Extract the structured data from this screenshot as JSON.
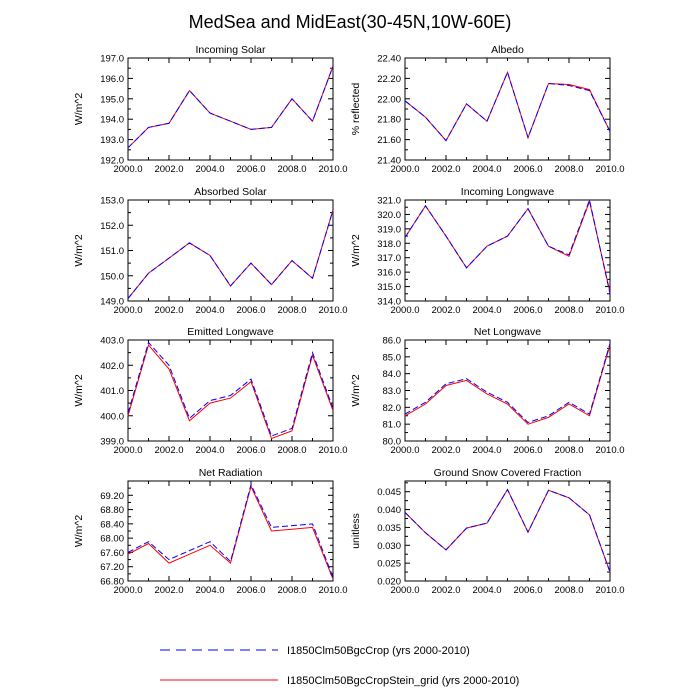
{
  "title": "MedSea and MidEast(30-45N,10W-60E)",
  "legend": [
    {
      "label": "I1850Clm50BgcCrop (yrs 2000-2010)",
      "color": "#0000ff",
      "dash": "dashed"
    },
    {
      "label": "I1850Clm50BgcCropStein_grid (yrs 2000-2010)",
      "color": "#ff0000",
      "dash": "solid"
    }
  ],
  "chart_data": [
    {
      "type": "line",
      "title": "Incoming Solar",
      "ylabel": "W/m^2",
      "xlim": [
        2000,
        2010
      ],
      "ylim": [
        192,
        197
      ],
      "xticks": [
        "2000.0",
        "2002.0",
        "2004.0",
        "2006.0",
        "2008.0",
        "2010.0"
      ],
      "yticks": [
        "192.0",
        "193.0",
        "194.0",
        "195.0",
        "196.0",
        "197.0"
      ],
      "x": [
        2000,
        2001,
        2002,
        2003,
        2004,
        2005,
        2006,
        2007,
        2008,
        2009,
        2010
      ],
      "series": [
        {
          "name": "I1850Clm50BgcCrop (yrs 2000-2010)",
          "values": [
            192.6,
            193.6,
            193.8,
            195.4,
            194.3,
            193.9,
            193.5,
            193.6,
            195.0,
            193.9,
            196.6
          ]
        },
        {
          "name": "I1850Clm50BgcCropStein_grid (yrs 2000-2010)",
          "values": [
            192.6,
            193.6,
            193.8,
            195.4,
            194.3,
            193.9,
            193.5,
            193.6,
            195.0,
            193.9,
            196.6
          ]
        }
      ]
    },
    {
      "type": "line",
      "title": "Albedo",
      "ylabel": "% reflected",
      "xlim": [
        2000,
        2010
      ],
      "ylim": [
        21.4,
        22.4
      ],
      "xticks": [
        "2000.0",
        "2002.0",
        "2004.0",
        "2006.0",
        "2008.0",
        "2010.0"
      ],
      "yticks": [
        "21.40",
        "21.60",
        "21.80",
        "22.00",
        "22.20",
        "22.40"
      ],
      "x": [
        2000,
        2001,
        2002,
        2003,
        2004,
        2005,
        2006,
        2007,
        2008,
        2009,
        2010
      ],
      "series": [
        {
          "name": "I1850Clm50BgcCrop (yrs 2000-2010)",
          "values": [
            21.98,
            21.82,
            21.59,
            21.95,
            21.78,
            22.26,
            21.62,
            22.15,
            22.13,
            22.08,
            21.68
          ]
        },
        {
          "name": "I1850Clm50BgcCropStein_grid (yrs 2000-2010)",
          "values": [
            21.98,
            21.82,
            21.59,
            21.95,
            21.78,
            22.26,
            21.62,
            22.15,
            22.14,
            22.09,
            21.68
          ]
        }
      ]
    },
    {
      "type": "line",
      "title": "Absorbed Solar",
      "ylabel": "W/m^2",
      "xlim": [
        2000,
        2010
      ],
      "ylim": [
        149,
        153
      ],
      "xticks": [
        "2000.0",
        "2002.0",
        "2004.0",
        "2006.0",
        "2008.0",
        "2010.0"
      ],
      "yticks": [
        "149.0",
        "150.0",
        "151.0",
        "152.0",
        "153.0"
      ],
      "x": [
        2000,
        2001,
        2002,
        2003,
        2004,
        2005,
        2006,
        2007,
        2008,
        2009,
        2010
      ],
      "series": [
        {
          "name": "I1850Clm50BgcCrop (yrs 2000-2010)",
          "values": [
            149.1,
            150.1,
            150.7,
            151.3,
            150.8,
            149.6,
            150.5,
            149.65,
            150.6,
            149.9,
            152.6
          ]
        },
        {
          "name": "I1850Clm50BgcCropStein_grid (yrs 2000-2010)",
          "values": [
            149.1,
            150.1,
            150.7,
            151.3,
            150.8,
            149.6,
            150.5,
            149.65,
            150.6,
            149.9,
            152.6
          ]
        }
      ]
    },
    {
      "type": "line",
      "title": "Incoming Longwave",
      "ylabel": "W/m^2",
      "xlim": [
        2000,
        2010
      ],
      "ylim": [
        314,
        321
      ],
      "xticks": [
        "2000.0",
        "2002.0",
        "2004.0",
        "2006.0",
        "2008.0",
        "2010.0"
      ],
      "yticks": [
        "314.0",
        "315.0",
        "316.0",
        "317.0",
        "318.0",
        "319.0",
        "320.0",
        "321.0"
      ],
      "x": [
        2000,
        2001,
        2002,
        2003,
        2004,
        2005,
        2006,
        2007,
        2008,
        2009,
        2010
      ],
      "series": [
        {
          "name": "I1850Clm50BgcCrop (yrs 2000-2010)",
          "values": [
            318.4,
            320.6,
            318.5,
            316.3,
            317.8,
            318.5,
            320.4,
            317.8,
            317.2,
            321.0,
            314.5
          ]
        },
        {
          "name": "I1850Clm50BgcCropStein_grid (yrs 2000-2010)",
          "values": [
            318.4,
            320.6,
            318.5,
            316.3,
            317.8,
            318.5,
            320.4,
            317.8,
            317.1,
            320.9,
            314.6
          ]
        }
      ]
    },
    {
      "type": "line",
      "title": "Emitted Longwave",
      "ylabel": "W/m^2",
      "xlim": [
        2000,
        2010
      ],
      "ylim": [
        399,
        403
      ],
      "xticks": [
        "2000.0",
        "2002.0",
        "2004.0",
        "2006.0",
        "2008.0",
        "2010.0"
      ],
      "yticks": [
        "399.0",
        "400.0",
        "401.0",
        "402.0",
        "403.0"
      ],
      "x": [
        2000,
        2001,
        2002,
        2003,
        2004,
        2005,
        2006,
        2007,
        2008,
        2009,
        2010
      ],
      "series": [
        {
          "name": "I1850Clm50BgcCrop (yrs 2000-2010)",
          "values": [
            400.1,
            402.9,
            402.0,
            399.9,
            400.6,
            400.8,
            401.45,
            399.2,
            399.5,
            402.5,
            400.3
          ]
        },
        {
          "name": "I1850Clm50BgcCropStein_grid (yrs 2000-2010)",
          "values": [
            400.0,
            402.8,
            401.85,
            399.8,
            400.5,
            400.7,
            401.35,
            399.1,
            399.4,
            402.4,
            400.2
          ]
        }
      ]
    },
    {
      "type": "line",
      "title": "Net Longwave",
      "ylabel": "W/m^2",
      "xlim": [
        2000,
        2010
      ],
      "ylim": [
        80,
        86
      ],
      "xticks": [
        "2000.0",
        "2002.0",
        "2004.0",
        "2006.0",
        "2008.0",
        "2010.0"
      ],
      "yticks": [
        "80.0",
        "81.0",
        "82.0",
        "83.0",
        "84.0",
        "85.0",
        "86.0"
      ],
      "x": [
        2000,
        2001,
        2002,
        2003,
        2004,
        2005,
        2006,
        2007,
        2008,
        2009,
        2010
      ],
      "series": [
        {
          "name": "I1850Clm50BgcCrop (yrs 2000-2010)",
          "values": [
            81.6,
            82.3,
            83.4,
            83.7,
            82.9,
            82.3,
            81.1,
            81.5,
            82.3,
            81.6,
            85.8
          ]
        },
        {
          "name": "I1850Clm50BgcCropStein_grid (yrs 2000-2010)",
          "values": [
            81.5,
            82.2,
            83.3,
            83.6,
            82.8,
            82.2,
            81.0,
            81.4,
            82.2,
            81.5,
            85.7
          ]
        }
      ]
    },
    {
      "type": "line",
      "title": "Net Radiation",
      "ylabel": "W/m^2",
      "xlim": [
        2000,
        2010
      ],
      "ylim": [
        66.8,
        69.6
      ],
      "xticks": [
        "2000.0",
        "2002.0",
        "2004.0",
        "2006.0",
        "2008.0",
        "2010.0"
      ],
      "yticks": [
        "66.80",
        "67.20",
        "67.60",
        "68.00",
        "68.40",
        "68.80",
        "69.20"
      ],
      "x": [
        2000,
        2001,
        2002,
        2003,
        2004,
        2005,
        2006,
        2007,
        2008,
        2009,
        2010
      ],
      "series": [
        {
          "name": "I1850Clm50BgcCrop (yrs 2000-2010)",
          "values": [
            67.6,
            67.9,
            67.4,
            67.65,
            67.9,
            67.35,
            69.5,
            68.3,
            68.35,
            68.4,
            66.9
          ]
        },
        {
          "name": "I1850Clm50BgcCropStein_grid (yrs 2000-2010)",
          "values": [
            67.55,
            67.85,
            67.3,
            67.55,
            67.8,
            67.3,
            69.45,
            68.2,
            68.25,
            68.3,
            66.85
          ]
        }
      ]
    },
    {
      "type": "line",
      "title": "Ground Snow Covered Fraction",
      "ylabel": "unitless",
      "xlim": [
        2000,
        2010
      ],
      "ylim": [
        0.02,
        0.048
      ],
      "xticks": [
        "2000.0",
        "2002.0",
        "2004.0",
        "2006.0",
        "2008.0",
        "2010.0"
      ],
      "yticks": [
        "0.020",
        "0.025",
        "0.030",
        "0.035",
        "0.040",
        "0.045"
      ],
      "x": [
        2000,
        2001,
        2002,
        2003,
        2004,
        2005,
        2006,
        2007,
        2008,
        2009,
        2010
      ],
      "series": [
        {
          "name": "I1850Clm50BgcCrop (yrs 2000-2010)",
          "values": [
            0.0392,
            0.0335,
            0.0287,
            0.0348,
            0.0362,
            0.0456,
            0.0337,
            0.0454,
            0.0433,
            0.0385,
            0.0225
          ]
        },
        {
          "name": "I1850Clm50BgcCropStein_grid (yrs 2000-2010)",
          "values": [
            0.0392,
            0.0335,
            0.0287,
            0.0348,
            0.0362,
            0.0456,
            0.0337,
            0.0454,
            0.0433,
            0.0385,
            0.0225
          ]
        }
      ]
    }
  ]
}
